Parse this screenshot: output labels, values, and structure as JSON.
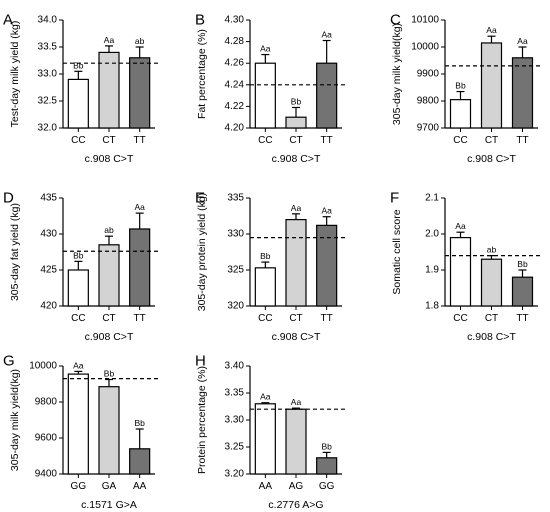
{
  "colors": {
    "white_bar": "#ffffff",
    "light_bar": "#d3d3d3",
    "dark_bar": "#737373",
    "stroke": "#000000"
  },
  "chart_data": [
    {
      "letter": "A",
      "type": "bar",
      "ylabel": "Test-day milk yield (kg)",
      "xlabel": "c.908 C>T",
      "ylim": [
        32.0,
        34.0
      ],
      "yticks": [
        "32.0",
        "32.5",
        "33.0",
        "33.5",
        "34.0"
      ],
      "categories": [
        "CC",
        "CT",
        "TT"
      ],
      "values": [
        32.9,
        33.4,
        33.3
      ],
      "errors": [
        0.15,
        0.12,
        0.2
      ],
      "labels": [
        "Bb",
        "Aa",
        "ab"
      ],
      "fills": [
        "white",
        "light",
        "dark"
      ],
      "reference": 33.2
    },
    {
      "letter": "B",
      "type": "bar",
      "ylabel": "Fat percentage (%)",
      "xlabel": "c.908 C>T",
      "ylim": [
        4.2,
        4.3
      ],
      "yticks": [
        "4.20",
        "4.22",
        "4.24",
        "4.26",
        "4.28",
        "4.30"
      ],
      "categories": [
        "CC",
        "CT",
        "TT"
      ],
      "values": [
        4.26,
        4.21,
        4.26
      ],
      "errors": [
        0.008,
        0.009,
        0.021
      ],
      "labels": [
        "Aa",
        "Bb",
        "Aa"
      ],
      "fills": [
        "white",
        "light",
        "dark"
      ],
      "reference": 4.24
    },
    {
      "letter": "C",
      "type": "bar",
      "ylabel": "305-day milk yield(kg)",
      "xlabel": "c.908 C>T",
      "ylim": [
        9700,
        10100
      ],
      "yticks": [
        "9700",
        "9800",
        "9900",
        "10000",
        "10100"
      ],
      "categories": [
        "CC",
        "CT",
        "TT"
      ],
      "values": [
        9805,
        10015,
        9960
      ],
      "errors": [
        30,
        25,
        40
      ],
      "labels": [
        "Bb",
        "Aa",
        "Aa"
      ],
      "fills": [
        "white",
        "light",
        "dark"
      ],
      "reference": 9930
    },
    {
      "letter": "D",
      "type": "bar",
      "ylabel": "305-day fat yield (kg)",
      "xlabel": "c.908 C>T",
      "ylim": [
        420,
        435
      ],
      "yticks": [
        "420",
        "425",
        "430",
        "435"
      ],
      "categories": [
        "CC",
        "CT",
        "TT"
      ],
      "values": [
        425,
        428.5,
        430.7
      ],
      "errors": [
        1.2,
        1.2,
        2.2
      ],
      "labels": [
        "Bb",
        "ab",
        "Aa"
      ],
      "fills": [
        "white",
        "light",
        "dark"
      ],
      "reference": 427.6
    },
    {
      "letter": "E",
      "type": "bar",
      "ylabel": "305-day protein yield (kg)",
      "xlabel": "c.908 C>T",
      "ylim": [
        320,
        335
      ],
      "yticks": [
        "320",
        "325",
        "330",
        "335"
      ],
      "categories": [
        "CC",
        "CT",
        "TT"
      ],
      "values": [
        325.3,
        332,
        331.2
      ],
      "errors": [
        0.8,
        0.8,
        1.2
      ],
      "labels": [
        "Bb",
        "Aa",
        "Aa"
      ],
      "fills": [
        "white",
        "light",
        "dark"
      ],
      "reference": 329.5
    },
    {
      "letter": "F",
      "type": "bar",
      "ylabel": "Somatic cell score",
      "xlabel": "c.908 C>T",
      "ylim": [
        1.8,
        2.1
      ],
      "yticks": [
        "1.8",
        "1.9",
        "2.0",
        "2.1"
      ],
      "categories": [
        "CC",
        "CT",
        "TT"
      ],
      "values": [
        1.99,
        1.93,
        1.88
      ],
      "errors": [
        0.015,
        0.01,
        0.02
      ],
      "labels": [
        "Aa",
        "ab",
        "Bb"
      ],
      "fills": [
        "white",
        "light",
        "dark"
      ],
      "reference": 1.94
    },
    {
      "letter": "G",
      "type": "bar",
      "ylabel": "305-day milk yield(kg)",
      "xlabel": "c.1571 G>A",
      "ylim": [
        9400,
        10000
      ],
      "yticks": [
        "9400",
        "9600",
        "9800",
        "10000"
      ],
      "categories": [
        "GG",
        "GA",
        "AA"
      ],
      "values": [
        9955,
        9885,
        9540
      ],
      "errors": [
        15,
        40,
        110
      ],
      "labels": [
        "Aa",
        "Bb",
        "Bb"
      ],
      "fills": [
        "white",
        "light",
        "dark"
      ],
      "reference": 9930
    },
    {
      "letter": "H",
      "type": "bar",
      "ylabel": "Protein percentage (%)",
      "xlabel": "c.2776 A>G",
      "ylim": [
        3.2,
        3.4
      ],
      "yticks": [
        "3.20",
        "3.25",
        "3.30",
        "3.35",
        "3.40"
      ],
      "categories": [
        "AA",
        "AG",
        "GG"
      ],
      "values": [
        3.33,
        3.32,
        3.23
      ],
      "errors": [
        0.002,
        0.002,
        0.01
      ],
      "labels": [
        "Aa",
        "Aa",
        "Bb"
      ],
      "fills": [
        "white",
        "light",
        "dark"
      ],
      "reference": 3.32
    }
  ]
}
